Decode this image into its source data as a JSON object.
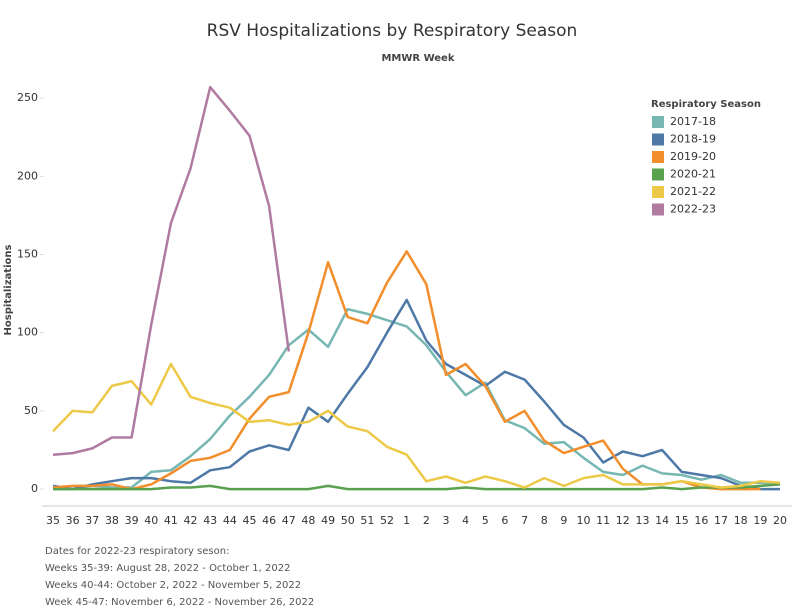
{
  "chart_data": {
    "type": "line",
    "title": "RSV Hospitalizations by Respiratory Season",
    "subtitle": "MMWR Week",
    "y_label": "Hospitalizations",
    "legend_title": "Respiratory Season",
    "legend_position": "top-right",
    "categories": [
      "35",
      "36",
      "37",
      "38",
      "39",
      "40",
      "41",
      "42",
      "43",
      "44",
      "45",
      "46",
      "47",
      "48",
      "49",
      "50",
      "51",
      "52",
      "1",
      "2",
      "3",
      "4",
      "5",
      "6",
      "7",
      "8",
      "9",
      "10",
      "11",
      "12",
      "13",
      "14",
      "15",
      "16",
      "17",
      "18",
      "19",
      "20"
    ],
    "series": [
      {
        "name": "2017-18",
        "color": "#76b7b2",
        "values": [
          0,
          0,
          2,
          1,
          1,
          11,
          12,
          21,
          32,
          47,
          59,
          73,
          92,
          102,
          91,
          115,
          112,
          108,
          104,
          92,
          75,
          60,
          68,
          44,
          39,
          29,
          30,
          20,
          11,
          9,
          15,
          10,
          9,
          6,
          9,
          4,
          4,
          3
        ]
      },
      {
        "name": "2018-19",
        "color": "#4e79a7",
        "values": [
          2,
          0,
          3,
          5,
          7,
          7,
          5,
          4,
          12,
          14,
          24,
          28,
          25,
          52,
          43,
          61,
          78,
          100,
          121,
          95,
          80,
          73,
          66,
          75,
          70,
          56,
          41,
          33,
          17,
          24,
          21,
          25,
          11,
          9,
          7,
          2,
          0,
          0
        ]
      },
      {
        "name": "2019-20",
        "color": "#f28e2b",
        "values": [
          1,
          2,
          2,
          3,
          0,
          3,
          10,
          18,
          20,
          25,
          45,
          59,
          62,
          100,
          145,
          110,
          106,
          132,
          152,
          131,
          73,
          80,
          66,
          43,
          50,
          31,
          23,
          27,
          31,
          13,
          3,
          3,
          5,
          1,
          0,
          0,
          0,
          null
        ]
      },
      {
        "name": "2020-21",
        "color": "#59a14f",
        "values": [
          0,
          0,
          0,
          0,
          0,
          0,
          1,
          1,
          2,
          0,
          0,
          0,
          0,
          0,
          2,
          0,
          0,
          0,
          0,
          0,
          0,
          1,
          0,
          0,
          0,
          0,
          0,
          0,
          0,
          0,
          0,
          1,
          0,
          1,
          1,
          1,
          2,
          3
        ]
      },
      {
        "name": "2021-22",
        "color": "#edc948",
        "values": [
          37,
          50,
          49,
          66,
          69,
          54,
          80,
          59,
          55,
          52,
          43,
          44,
          41,
          43,
          50,
          40,
          37,
          27,
          22,
          5,
          8,
          4,
          8,
          5,
          1,
          7,
          2,
          7,
          9,
          3,
          3,
          3,
          5,
          3,
          1,
          2,
          5,
          4
        ]
      },
      {
        "name": "2022-23",
        "color": "#b07aa1",
        "values": [
          22,
          23,
          26,
          33,
          33,
          105,
          170,
          205,
          257,
          242,
          226,
          181,
          88,
          null,
          null,
          null,
          null,
          null,
          null,
          null,
          null,
          null,
          null,
          null,
          null,
          null,
          null,
          null,
          null,
          null,
          null,
          null,
          null,
          null,
          null,
          null,
          null,
          null
        ]
      }
    ],
    "ylim": [
      -7,
      268
    ],
    "yticks": [
      0,
      50,
      100,
      150,
      200,
      250
    ],
    "grid": false,
    "notes": [
      "Dates for 2022-23 respiratory seson:",
      "Weeks 35-39: August 28, 2022 - October 1, 2022",
      "Weeks 40-44: October 2, 2022 - November 5, 2022",
      "Week 45-47: November 6, 2022 - November 26, 2022"
    ]
  }
}
